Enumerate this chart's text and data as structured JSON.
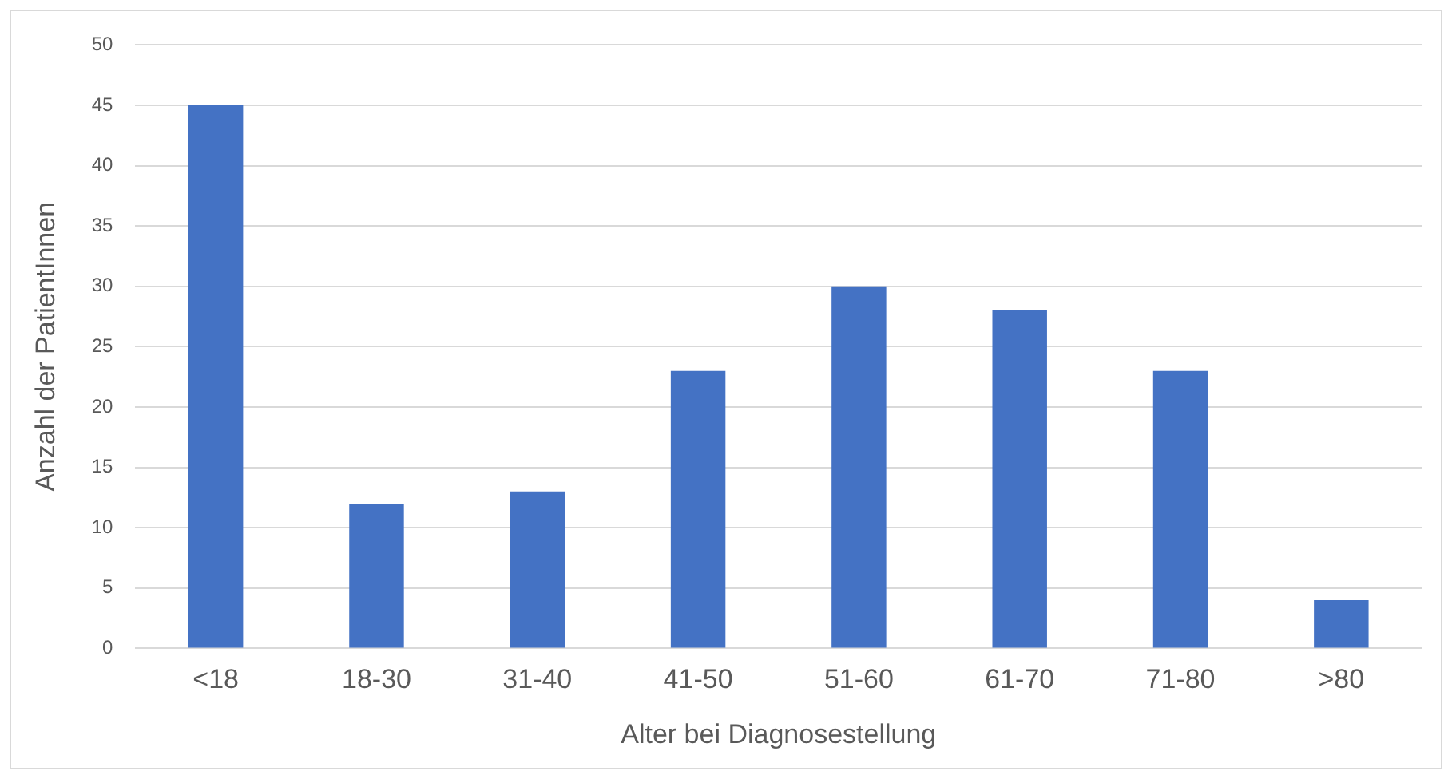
{
  "chart_data": {
    "type": "bar",
    "xlabel": "Alter bei Diagnosestellung",
    "ylabel": "Anzahl der PatientInnen",
    "categories": [
      "<18",
      "18-30",
      "31-40",
      "41-50",
      "51-60",
      "61-70",
      "71-80",
      ">80"
    ],
    "values": [
      45,
      12,
      13,
      23,
      30,
      28,
      23,
      4
    ],
    "color": "#4472c4",
    "ylim": [
      0,
      50
    ],
    "yticks": [
      0,
      5,
      10,
      15,
      20,
      25,
      30,
      35,
      40,
      45,
      50
    ],
    "grid": "y",
    "legend": false
  }
}
